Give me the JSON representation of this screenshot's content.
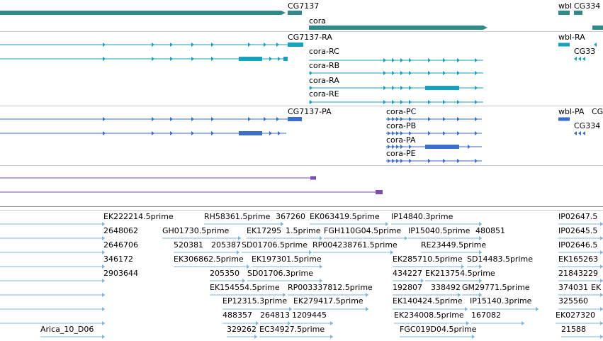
{
  "colors": {
    "gene": "#2e8b88",
    "transcript": "#17a1c1",
    "protein": "#3a6fcf",
    "purple": "#7a4fb0",
    "est": "#7fb6dc",
    "separator": "#c8c8c8"
  },
  "gene_track": {
    "labels": [
      "CG7137",
      "cora",
      "wbl",
      "CG334"
    ]
  },
  "transcript_track": {
    "labels": [
      "CG7137-RA",
      "cora-RC",
      "cora-RB",
      "cora-RA",
      "cora-RE",
      "wbl-RA",
      "CG33"
    ]
  },
  "protein_track": {
    "labels": [
      "CG7137-PA",
      "cora-PC",
      "cora-PB",
      "cora-PA",
      "cora-PE",
      "wbl-PA",
      "CG",
      "CG334"
    ]
  },
  "est_track": {
    "labels": [
      "EK222214.5prime",
      "RH58361.5prime",
      "367260",
      "EK063419.5prime",
      "IP14840.3prime",
      "IP02647.5",
      "2648062",
      "GH01730.5prime",
      "EK17295",
      "1.5prime",
      "FGH110G04.5prime",
      "IP15040.5prime",
      "480851",
      "IP02645.5",
      "2646706",
      "520381",
      "205387",
      "SD01706.5prime",
      "RP004238761.5prime",
      "RE23449.5prime",
      "IP02646.5",
      "346172",
      "EK306862.5prime",
      "EK197301.5prime",
      "EK285710.5prime",
      "SD14483.5prime",
      "EK165263",
      "2903644",
      "205350",
      "SD01706.3prime",
      "434227",
      "EK213754.5prime",
      "21843229",
      "EK154554.5prime",
      "RP003337812.5prime",
      "192807",
      "338492",
      "GM29771.5prime",
      "374031",
      "EK",
      "EP12315.3prime",
      "EK279417.5prime",
      "EK140424.5prime",
      "IP15140.3prime",
      "325560",
      "488357",
      "264813",
      "1209445",
      "EK234008.5prime",
      "167082",
      "EK027320",
      "Arica_10_D06",
      "329262",
      "EC34927.5prime",
      "FGC019D04.5prime",
      "21588"
    ]
  }
}
